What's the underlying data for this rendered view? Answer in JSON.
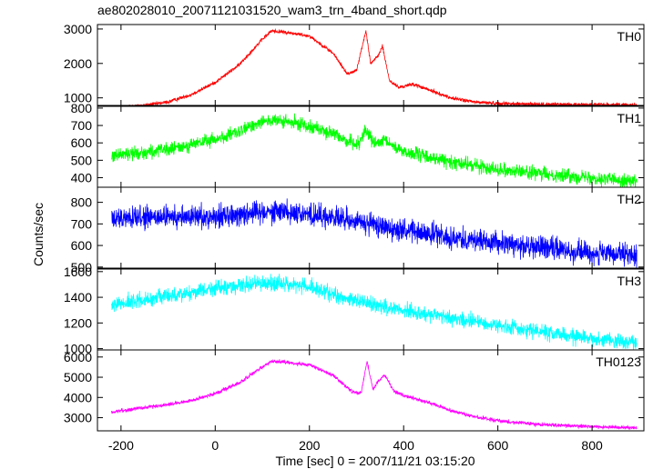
{
  "chart_data": {
    "type": "line",
    "title": "ae802028010_20071121031520_wam3_trn_4band_short.qdp",
    "xlabel": "Time [sec] 0 = 2007/11/21 03:15:20",
    "ylabel": "Counts/sec",
    "xlim": [
      -250,
      910
    ],
    "xticks": [
      -200,
      0,
      200,
      400,
      600,
      800
    ],
    "panels": [
      {
        "name": "TH0",
        "color": "#ff0000",
        "ylim": [
          780,
          3130
        ],
        "yticks": [
          1000,
          2000,
          3000
        ],
        "x": [
          -220,
          -200,
          -150,
          -100,
          -50,
          0,
          50,
          100,
          120,
          150,
          200,
          250,
          280,
          300,
          320,
          330,
          345,
          355,
          370,
          390,
          420,
          440,
          460,
          500,
          550,
          600,
          700,
          800,
          895
        ],
        "values": [
          700,
          740,
          780,
          880,
          1100,
          1450,
          1950,
          2700,
          2950,
          2900,
          2800,
          2300,
          1700,
          1800,
          2950,
          2000,
          2200,
          2500,
          1500,
          1300,
          1400,
          1300,
          1200,
          1000,
          880,
          840,
          810,
          805,
          800
        ],
        "noise": 40
      },
      {
        "name": "TH1",
        "color": "#00ff00",
        "ylim": [
          345,
          810
        ],
        "yticks": [
          400,
          500,
          600,
          700,
          800
        ],
        "x": [
          -220,
          -150,
          -100,
          -50,
          0,
          50,
          100,
          150,
          200,
          250,
          300,
          320,
          340,
          360,
          400,
          450,
          500,
          550,
          600,
          700,
          800,
          895
        ],
        "values": [
          530,
          545,
          560,
          590,
          620,
          660,
          730,
          720,
          700,
          650,
          590,
          670,
          590,
          610,
          550,
          520,
          490,
          470,
          450,
          420,
          400,
          380
        ],
        "noise": 30
      },
      {
        "name": "TH2",
        "color": "#0000ff",
        "ylim": [
          495,
          870
        ],
        "yticks": [
          500,
          600,
          700,
          800
        ],
        "x": [
          -220,
          -100,
          0,
          100,
          150,
          200,
          300,
          400,
          500,
          600,
          700,
          800,
          895
        ],
        "values": [
          720,
          730,
          735,
          760,
          760,
          745,
          710,
          670,
          640,
          610,
          590,
          565,
          550
        ],
        "noise": 40
      },
      {
        "name": "TH3",
        "color": "#00ffff",
        "ylim": [
          990,
          1620
        ],
        "yticks": [
          1000,
          1200,
          1400,
          1600
        ],
        "x": [
          -220,
          -150,
          -50,
          0,
          50,
          100,
          150,
          200,
          250,
          300,
          400,
          500,
          600,
          700,
          800,
          895
        ],
        "values": [
          1340,
          1380,
          1440,
          1470,
          1490,
          1510,
          1505,
          1480,
          1420,
          1370,
          1300,
          1240,
          1180,
          1130,
          1080,
          1050
        ],
        "noise": 45
      },
      {
        "name": "TH0123",
        "color": "#ff00ff",
        "ylim": [
          2350,
          6350
        ],
        "yticks": [
          3000,
          4000,
          5000,
          6000
        ],
        "x": [
          -220,
          -200,
          -150,
          -100,
          -50,
          0,
          50,
          100,
          120,
          150,
          200,
          250,
          290,
          310,
          322,
          335,
          350,
          360,
          380,
          400,
          430,
          460,
          500,
          550,
          600,
          700,
          800,
          895
        ],
        "values": [
          3250,
          3350,
          3500,
          3650,
          3850,
          4200,
          4700,
          5500,
          5800,
          5750,
          5600,
          5100,
          4300,
          4200,
          5800,
          4400,
          4900,
          5100,
          4300,
          4100,
          3900,
          3700,
          3350,
          3050,
          2850,
          2650,
          2550,
          2500
        ],
        "noise": 70
      }
    ]
  }
}
